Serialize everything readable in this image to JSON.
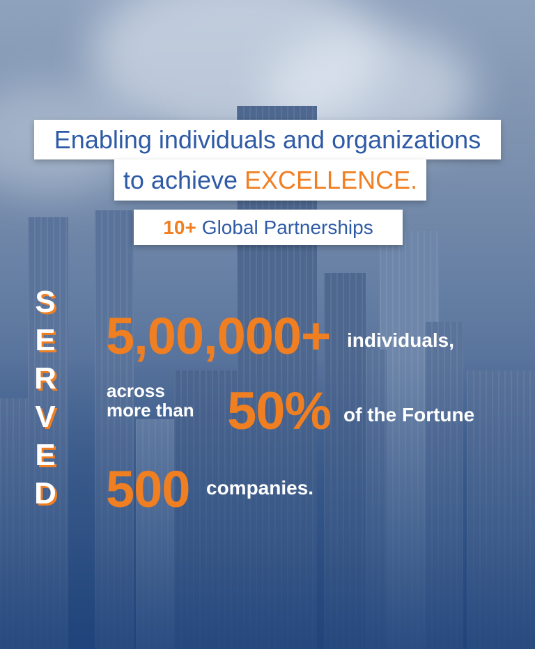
{
  "banner": {
    "line1": "Enabling individuals and organizations",
    "line2_prefix": "to achieve ",
    "line2_highlight": "EXCELLENCE.",
    "line3_number": "10+",
    "line3_text": "Global Partnerships"
  },
  "served_letters": [
    "S",
    "E",
    "R",
    "V",
    "E",
    "D"
  ],
  "stats": {
    "individuals_number": "5,00,000+",
    "individuals_label": "individuals,",
    "across_line1": "across",
    "across_line2": "more than",
    "percent": "50%",
    "fortune_label": "of the Fortune",
    "companies_number": "500",
    "companies_label": "companies."
  },
  "colors": {
    "accent_orange": "#f07f22",
    "brand_blue": "#2e5aa6",
    "background_blue": "#3f5f8e"
  }
}
